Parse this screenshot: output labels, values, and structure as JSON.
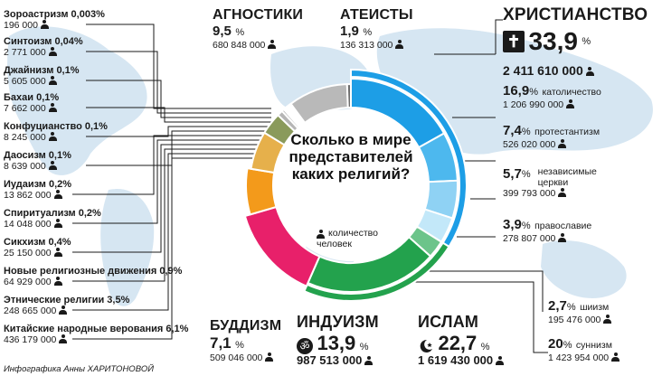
{
  "chart_data": {
    "type": "pie",
    "title": "Сколько в мире представителей каких религий?",
    "legend_note": "количество человек",
    "credit": "Инфографика Анны ХАРИТОНОВОЙ",
    "major": [
      {
        "key": "christianity",
        "name": "ХРИСТИАНСТВО",
        "pct": 33.9,
        "pct_label": "33,9",
        "count": "2 411 610 000",
        "color": "#1d9ee6"
      },
      {
        "key": "islam",
        "name": "ИСЛАМ",
        "pct": 22.7,
        "pct_label": "22,7",
        "count": "1 619 430 000",
        "color": "#23a24d"
      },
      {
        "key": "hinduism",
        "name": "ИНДУИЗМ",
        "pct": 13.9,
        "pct_label": "13,9",
        "count": "987 513 000",
        "color": "#e8206a"
      },
      {
        "key": "buddhism",
        "name": "БУДДИЗМ",
        "pct": 7.1,
        "pct_label": "7,1",
        "count": "509 046 000",
        "color": "#f39a1b"
      },
      {
        "key": "agnostics",
        "name": "АГНОСТИКИ",
        "pct": 9.5,
        "pct_label": "9,5",
        "count": "680 848 000",
        "color": "#b9b9b9"
      },
      {
        "key": "atheists",
        "name": "АТЕИСТЫ",
        "pct": 1.9,
        "pct_label": "1,9",
        "count": "136 313 000",
        "color": "#6d6d6d"
      }
    ],
    "christian_sub": [
      {
        "name": "католичество",
        "pct": 16.9,
        "pct_label": "16,9",
        "count": "1 206 990 000",
        "color": "#1d9ee6"
      },
      {
        "name": "протестантизм",
        "pct": 7.4,
        "pct_label": "7,4",
        "count": "526 020 000",
        "color": "#4db8ee"
      },
      {
        "name": "независимые церкви",
        "name_lines": [
          "независимые",
          "церкви"
        ],
        "pct": 5.7,
        "pct_label": "5,7",
        "count": "399 793 000",
        "color": "#8fd2f4"
      },
      {
        "name": "православие",
        "pct": 3.9,
        "pct_label": "3,9",
        "count": "278 807 000",
        "color": "#c3e8f9"
      }
    ],
    "islam_sub": [
      {
        "name": "шиизм",
        "pct": 2.7,
        "pct_label": "2,7",
        "count": "195 476 000",
        "color": "#6cc48a"
      },
      {
        "name": "суннизм",
        "pct": 20,
        "pct_label": "20",
        "count": "1 423 954 000",
        "color": "#23a24d"
      }
    ],
    "minor": [
      {
        "name": "Зороастризм",
        "pct_label": "0,003%",
        "pct": 0.003,
        "count": "196 000"
      },
      {
        "name": "Синтоизм",
        "pct_label": "0,04%",
        "pct": 0.04,
        "count": "2 771 000"
      },
      {
        "name": "Джайнизм",
        "pct_label": "0,1%",
        "pct": 0.1,
        "count": "5 605 000"
      },
      {
        "name": "Бахаи",
        "pct_label": "0,1%",
        "pct": 0.1,
        "count": "7 662 000"
      },
      {
        "name": "Конфуцианство",
        "pct_label": "0,1%",
        "pct": 0.1,
        "count": "8 245 000"
      },
      {
        "name": "Даосизм",
        "pct_label": "0,1%",
        "pct": 0.1,
        "count": "8 639 000"
      },
      {
        "name": "Иудаизм",
        "pct_label": "0,2%",
        "pct": 0.2,
        "count": "13 862 000"
      },
      {
        "name": "Спиритуализм",
        "pct_label": "0,2%",
        "pct": 0.2,
        "count": "14 048 000"
      },
      {
        "name": "Сикхизм",
        "pct_label": "0,4%",
        "pct": 0.4,
        "count": "25 150 000"
      },
      {
        "name": "Новые религиозные движения",
        "pct_label": "0,9%",
        "pct": 0.9,
        "count": "64 929 000"
      },
      {
        "name": "Этнические религии",
        "pct_label": "3,5%",
        "pct": 3.5,
        "count": "248 665 000"
      },
      {
        "name": "Китайские народные верования",
        "pct_label": "6,1%",
        "pct": 6.1,
        "count": "436 179 000"
      }
    ],
    "colors": {
      "minor": "#8a9a5b",
      "ethnic": "#e6b04b",
      "chinese": "#d9d9d9",
      "grey_dark": "#8c8c8c"
    }
  }
}
